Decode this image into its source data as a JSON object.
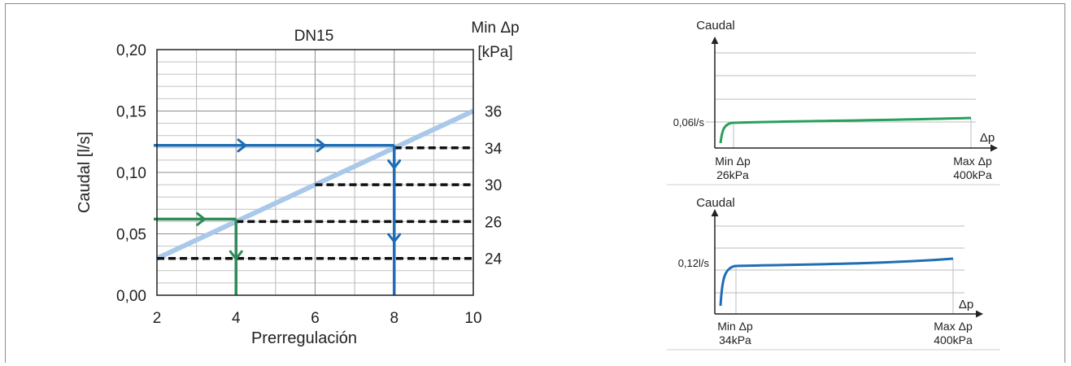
{
  "chart_data": [
    {
      "id": "main",
      "type": "line",
      "title": "DN15",
      "xlabel": "Prerregulación",
      "ylabel": "Caudal [l/s]",
      "y2label_line1": "Min Δp",
      "y2label_line2": "[kPa]",
      "xlim": [
        2,
        10
      ],
      "ylim": [
        0,
        0.2
      ],
      "x_ticks": [
        "2",
        "4",
        "6",
        "8",
        "10"
      ],
      "x_tick_values": [
        2,
        4,
        6,
        8,
        10
      ],
      "y_ticks": [
        "0,00",
        "0,05",
        "0,10",
        "0,15",
        "0,20"
      ],
      "y_tick_values": [
        0,
        0.05,
        0.1,
        0.15,
        0.2
      ],
      "grid": true,
      "series": [
        {
          "color": "#a9c8ea",
          "points": [
            [
              2,
              0.03
            ],
            [
              10,
              0.15
            ]
          ]
        }
      ],
      "min_dp_levels": [
        {
          "label": "24",
          "flow": 0.03,
          "x_start": 2
        },
        {
          "label": "26",
          "flow": 0.06,
          "x_start": 4
        },
        {
          "label": "30",
          "flow": 0.09,
          "x_start": 6
        },
        {
          "label": "34",
          "flow": 0.12,
          "x_start": 8
        },
        {
          "label": "36",
          "flow": 0.15,
          "x_start": null
        }
      ],
      "examples": [
        {
          "color": "#2e8b57",
          "flow": 0.062,
          "setting": 4
        },
        {
          "color": "#1f6db5",
          "flow": 0.122,
          "setting": 8
        }
      ]
    },
    {
      "id": "inset_green",
      "type": "line",
      "ylabel": "Caudal",
      "xlabel": "Δp",
      "flow_label": "0,06l/s",
      "x_left_line1": "Min Δp",
      "x_left_line2": "26kPa",
      "x_right_line1": "Max Δp",
      "x_right_line2": "400kPa",
      "color": "#27a05a"
    },
    {
      "id": "inset_blue",
      "type": "line",
      "ylabel": "Caudal",
      "xlabel": "Δp",
      "flow_label": "0,12l/s",
      "x_left_line1": "Min Δp",
      "x_left_line2": "34kPa",
      "x_right_line1": "Max Δp",
      "x_right_line2": "400kPa",
      "color": "#1f6db5"
    }
  ]
}
